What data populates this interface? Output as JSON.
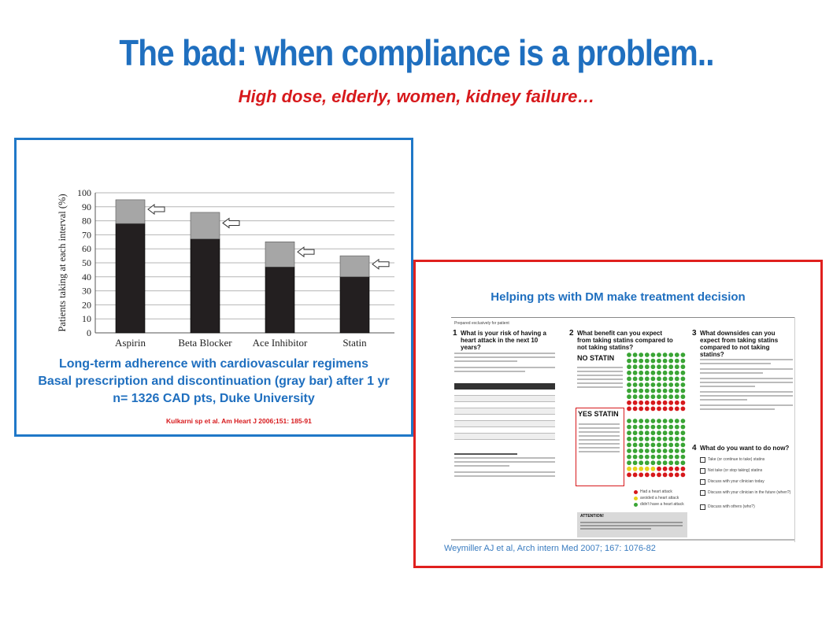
{
  "title": "The bad: when compliance is a problem..",
  "subtitle": "High dose, elderly, women, kidney failure…",
  "left_panel": {
    "caption_line1": "Long-term adherence with cardiovascular regimens",
    "caption_line2": "Basal prescription and discontinuation (gray bar) after 1 yr",
    "caption_line3": "n= 1326 CAD pts, Duke University",
    "reference": "Kulkarni sp et al. Am Heart J 2006;151: 185-91"
  },
  "right_panel": {
    "title": "Helping pts with DM make treatment decision",
    "reference": "Weymiller AJ et al, Arch intern Med 2007; 167: 1076-82",
    "doc": {
      "prepared": "Prepared exclusively for patient",
      "q1": "What is your risk of having a heart attack in the next 10 years?",
      "q2": "What benefit can you expect from taking statins compared to not taking statins?",
      "q3": "What downsides can you expect from taking statins compared to not taking statins?",
      "q4": "What do you want to do now?",
      "no_statin": "NO STATIN",
      "yes_statin": "YES STATIN",
      "attention": "ATTENTION!",
      "legend": [
        "Had a heart attack",
        "avoided a heart attack",
        "didn't have a heart attack"
      ],
      "options": [
        "Take (or continue to take) statins",
        "Not take (or stop taking) statins",
        "Discuss with your clinician today",
        "Discuss with your clinician in the future (when?)",
        "Discuss with others (who?)"
      ]
    }
  },
  "colors": {
    "title": "#1f6fbf",
    "subtitle": "#d7191c",
    "bar_dark": "#231f20",
    "bar_gray": "#a6a6a6",
    "left_border": "#1f78c8",
    "right_border": "#e0201e"
  },
  "chart_data": {
    "type": "bar",
    "stacked": true,
    "categories": [
      "Aspirin",
      "Beta Blocker",
      "Ace Inhibitor",
      "Statin"
    ],
    "series": [
      {
        "values": [
          78,
          67,
          47,
          40
        ]
      },
      {
        "values": [
          17,
          19,
          18,
          15
        ]
      }
    ],
    "ylabel": "Patients taking at each interval (%)",
    "ylim": [
      0,
      100
    ],
    "yticks": [
      0,
      10,
      20,
      30,
      40,
      50,
      60,
      70,
      80,
      90,
      100
    ],
    "grid": true
  }
}
